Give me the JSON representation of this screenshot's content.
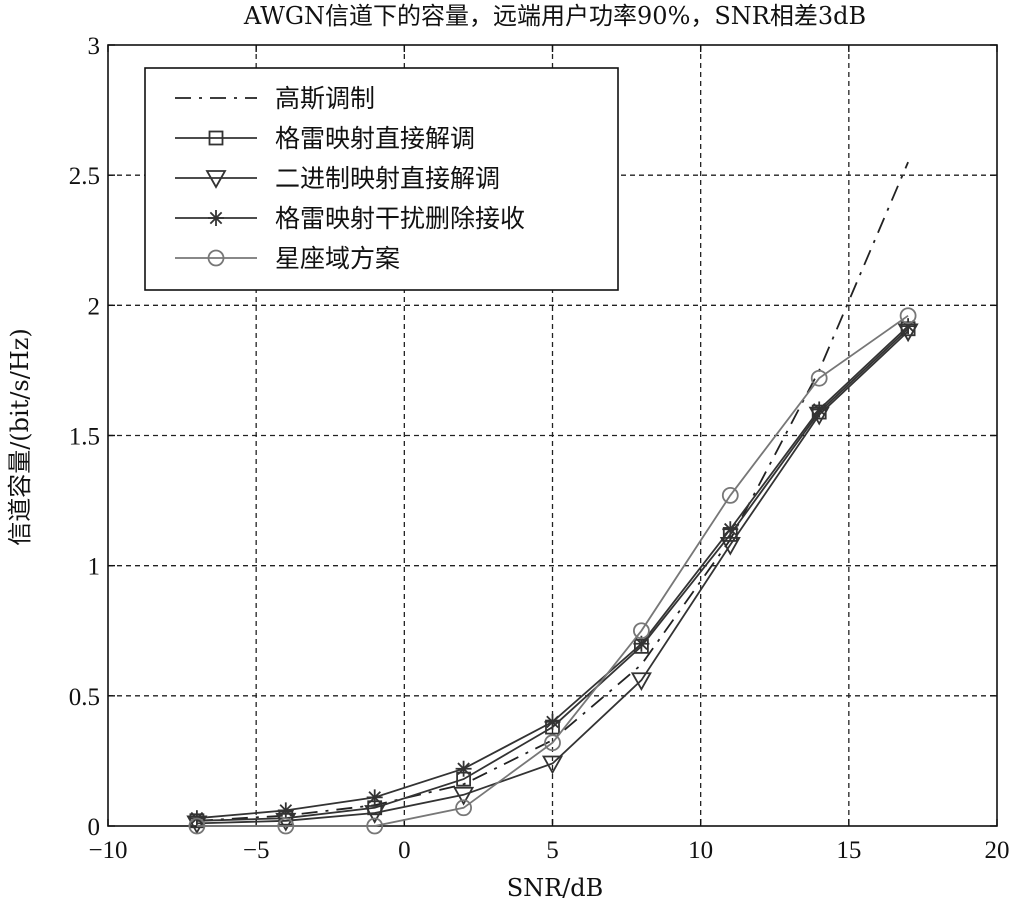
{
  "chart_data": {
    "type": "line",
    "title": "AWGN信道下的容量，远端用户功率90%，SNR相差3dB",
    "xlabel": "SNR/dB",
    "ylabel": "信道容量/(bit/s/Hz)",
    "xlim": [
      -10,
      20
    ],
    "ylim": [
      0,
      3
    ],
    "xticks": [
      -10,
      -5,
      0,
      5,
      10,
      15,
      20
    ],
    "xtick_labels": [
      "−10",
      "−5",
      "0",
      "5",
      "10",
      "15",
      "20"
    ],
    "yticks": [
      0,
      0.5,
      1,
      1.5,
      2,
      2.5,
      3
    ],
    "ytick_labels": [
      "0",
      "0.5",
      "1",
      "1.5",
      "2",
      "2.5",
      "3"
    ],
    "grid": true,
    "legend_position": "top-left",
    "series": [
      {
        "name": "高斯调制",
        "style": "dashdot",
        "marker": "none",
        "color": "#222222",
        "x": [
          -7,
          -4,
          -1,
          2,
          5,
          8,
          11,
          14,
          17
        ],
        "y": [
          0.02,
          0.04,
          0.08,
          0.16,
          0.33,
          0.62,
          1.1,
          1.75,
          2.55
        ]
      },
      {
        "name": "格雷映射直接解调",
        "style": "solid",
        "marker": "square",
        "color": "#333333",
        "x": [
          -7,
          -4,
          -1,
          2,
          5,
          8,
          11,
          14,
          17
        ],
        "y": [
          0.02,
          0.03,
          0.07,
          0.18,
          0.38,
          0.69,
          1.12,
          1.59,
          1.91
        ]
      },
      {
        "name": "二进制映射直接解调",
        "style": "solid",
        "marker": "triangle-down",
        "color": "#333333",
        "x": [
          -7,
          -4,
          -1,
          2,
          5,
          8,
          11,
          14,
          17
        ],
        "y": [
          0.01,
          0.02,
          0.05,
          0.12,
          0.24,
          0.56,
          1.08,
          1.58,
          1.9
        ]
      },
      {
        "name": "格雷映射干扰删除接收",
        "style": "solid",
        "marker": "star",
        "color": "#333333",
        "x": [
          -7,
          -4,
          -1,
          2,
          5,
          8,
          11,
          14,
          17
        ],
        "y": [
          0.03,
          0.06,
          0.11,
          0.22,
          0.4,
          0.7,
          1.14,
          1.6,
          1.92
        ]
      },
      {
        "name": "星座域方案",
        "style": "solid",
        "marker": "circle",
        "color": "#777777",
        "x": [
          -7,
          -4,
          -1,
          2,
          5,
          8,
          11,
          14,
          17
        ],
        "y": [
          0.0,
          0.0,
          0.0,
          0.07,
          0.32,
          0.75,
          1.27,
          1.72,
          1.96
        ]
      }
    ]
  }
}
